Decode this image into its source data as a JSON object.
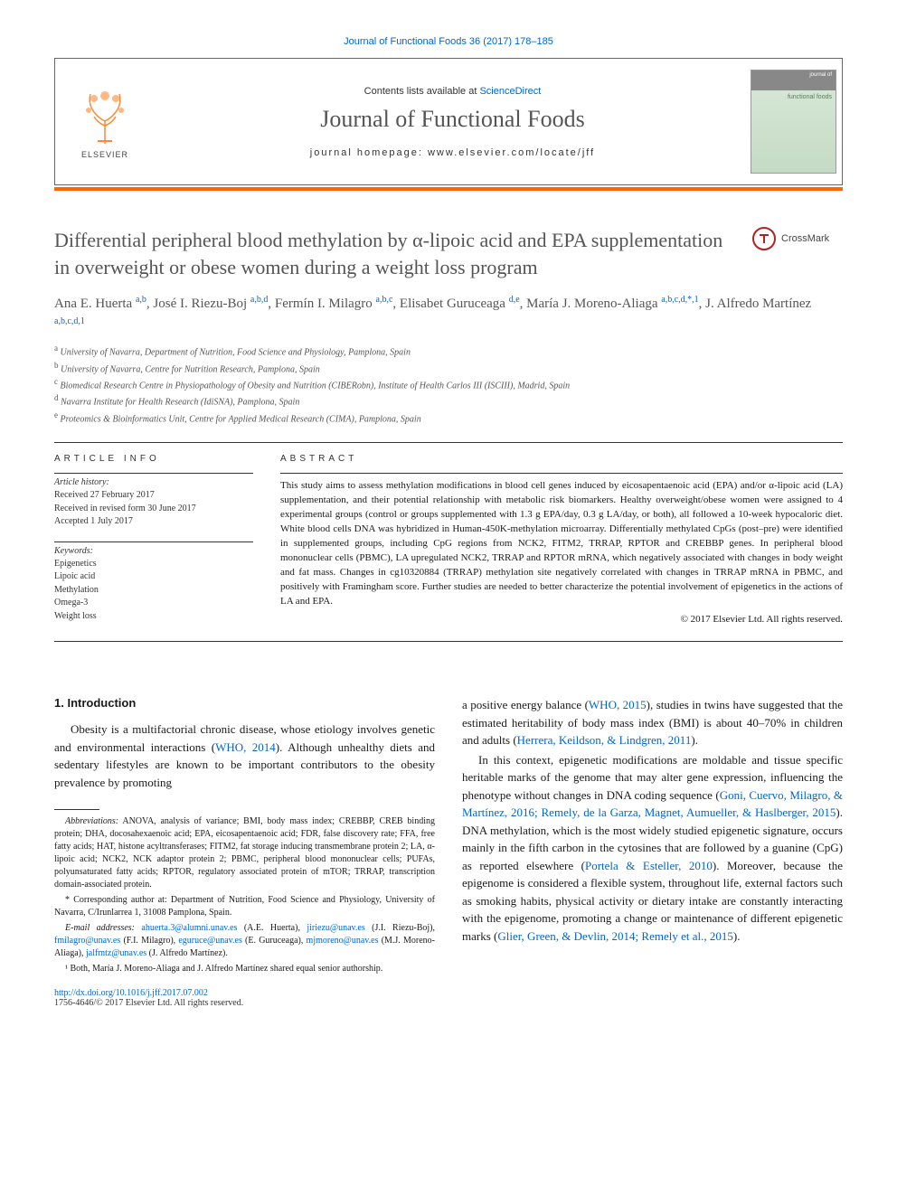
{
  "top_link": "Journal of Functional Foods 36 (2017) 178–185",
  "header": {
    "contents_prefix": "Contents lists available at ",
    "contents_link": "ScienceDirect",
    "journal_name": "Journal of Functional Foods",
    "homepage_prefix": "journal homepage: ",
    "homepage_url": "www.elsevier.com/locate/jff",
    "elsevier_label": "ELSEVIER",
    "cover_top": "journal of",
    "cover_title": "functional foods"
  },
  "crossmark_label": "CrossMark",
  "title": "Differential peripheral blood methylation by α-lipoic acid and EPA supplementation in overweight or obese women during a weight loss program",
  "authors_html": "Ana E. Huerta <sup>a,b</sup>, José I. Riezu-Boj <sup>a,b,d</sup>, Fermín I. Milagro <sup>a,b,c</sup>, Elisabet Guruceaga <sup>d,e</sup>, María J. Moreno-Aliaga <sup>a,b,c,d,*,1</sup>, J. Alfredo Martínez <sup>a,b,c,d,1</sup>",
  "affiliations": [
    {
      "sup": "a",
      "text": "University of Navarra, Department of Nutrition, Food Science and Physiology, Pamplona, Spain"
    },
    {
      "sup": "b",
      "text": "University of Navarra, Centre for Nutrition Research, Pamplona, Spain"
    },
    {
      "sup": "c",
      "text": "Biomedical Research Centre in Physiopathology of Obesity and Nutrition (CIBERobn), Institute of Health Carlos III (ISCIII), Madrid, Spain"
    },
    {
      "sup": "d",
      "text": "Navarra Institute for Health Research (IdiSNA), Pamplona, Spain"
    },
    {
      "sup": "e",
      "text": "Proteomics & Bioinformatics Unit, Centre for Applied Medical Research (CIMA), Pamplona, Spain"
    }
  ],
  "article_info": {
    "heading": "ARTICLE INFO",
    "history_label": "Article history:",
    "history": "Received 27 February 2017\nReceived in revised form 30 June 2017\nAccepted 1 July 2017",
    "keywords_label": "Keywords:",
    "keywords": [
      "Epigenetics",
      "Lipoic acid",
      "Methylation",
      "Omega-3",
      "Weight loss"
    ]
  },
  "abstract": {
    "heading": "ABSTRACT",
    "text": "This study aims to assess methylation modifications in blood cell genes induced by eicosapentaenoic acid (EPA) and/or α-lipoic acid (LA) supplementation, and their potential relationship with metabolic risk biomarkers. Healthy overweight/obese women were assigned to 4 experimental groups (control or groups supplemented with 1.3 g EPA/day, 0.3 g LA/day, or both), all followed a 10-week hypocaloric diet. White blood cells DNA was hybridized in Human-450K-methylation microarray. Differentially methylated CpGs (post–pre) were identified in supplemented groups, including CpG regions from NCK2, FITM2, TRRAP, RPTOR and CREBBP genes. In peripheral blood mononuclear cells (PBMC), LA upregulated NCK2, TRRAP and RPTOR mRNA, which negatively associated with changes in body weight and fat mass. Changes in cg10320884 (TRRAP) methylation site negatively correlated with changes in TRRAP mRNA in PBMC, and positively with Framingham score. Further studies are needed to better characterize the potential involvement of epigenetics in the actions of LA and EPA.",
    "copyright": "© 2017 Elsevier Ltd. All rights reserved."
  },
  "body": {
    "intro_heading": "1. Introduction",
    "col1_p1_prefix": "Obesity is a multifactorial chronic disease, whose etiology involves genetic and environmental interactions (",
    "col1_p1_link": "WHO, 2014",
    "col1_p1_suffix": "). Although unhealthy diets and sedentary lifestyles are known to be important contributors to the obesity prevalence by promoting",
    "col2_p1_a": "a positive energy balance (",
    "col2_p1_link1": "WHO, 2015",
    "col2_p1_b": "), studies in twins have suggested that the estimated heritability of body mass index (BMI) is about 40–70% in children and adults (",
    "col2_p1_link2": "Herrera, Keildson, & Lindgren, 2011",
    "col2_p1_c": ").",
    "col2_p2_a": "In this context, epigenetic modifications are moldable and tissue specific heritable marks of the genome that may alter gene expression, influencing the phenotype without changes in DNA coding sequence (",
    "col2_p2_link1": "Goni, Cuervo, Milagro, & Martínez, 2016; Remely, de la Garza, Magnet, Aumueller, & Haslberger, 2015",
    "col2_p2_b": "). DNA methylation, which is the most widely studied epigenetic signature, occurs mainly in the fifth carbon in the cytosines that are followed by a guanine (CpG) as reported elsewhere (",
    "col2_p2_link2": "Portela & Esteller, 2010",
    "col2_p2_c": "). Moreover, because the epigenome is considered a flexible system, throughout life, external factors such as smoking habits, physical activity or dietary intake are constantly interacting with the epigenome, promoting a change or maintenance of different epigenetic marks (",
    "col2_p2_link3": "Glier, Green, & Devlin, 2014; Remely et al., 2015",
    "col2_p2_d": ")."
  },
  "footnotes": {
    "abbrev_label": "Abbreviations:",
    "abbrev_text": " ANOVA, analysis of variance; BMI, body mass index; CREBBP, CREB binding protein; DHA, docosahexaenoic acid; EPA, eicosapentaenoic acid; FDR, false discovery rate; FFA, free fatty acids; HAT, histone acyltransferases; FITM2, fat storage inducing transmembrane protein 2; LA, α-lipoic acid; NCK2, NCK adaptor protein 2; PBMC, peripheral blood mononuclear cells; PUFAs, polyunsaturated fatty acids; RPTOR, regulatory associated protein of mTOR; TRRAP, transcription domain-associated protein.",
    "corr_label": "* Corresponding author at: Department of Nutrition, Food Science and Physiology, University of Navarra, C/Irunlarrea 1, 31008 Pamplona, Spain.",
    "email_label": "E-mail addresses:",
    "emails": [
      {
        "email": "ahuerta.3@alumni.unav.es",
        "name": "(A.E. Huerta)"
      },
      {
        "email": "jiriezu@unav.es",
        "name": "(J.I. Riezu-Boj)"
      },
      {
        "email": "fmilagro@unav.es",
        "name": "(F.I. Milagro)"
      },
      {
        "email": "eguruce@unav.es",
        "name": "(E. Guruceaga)"
      },
      {
        "email": "mjmoreno@unav.es",
        "name": "(M.J. Moreno-Aliaga)"
      },
      {
        "email": "jalfmtz@unav.es",
        "name": "(J. Alfredo Martínez)"
      }
    ],
    "shared_note": "¹ Both, María J. Moreno-Aliaga and J. Alfredo Martínez shared equal senior authorship.",
    "doi": "http://dx.doi.org/10.1016/j.jff.2017.07.002",
    "issn_copyright": "1756-4646/© 2017 Elsevier Ltd. All rights reserved."
  }
}
